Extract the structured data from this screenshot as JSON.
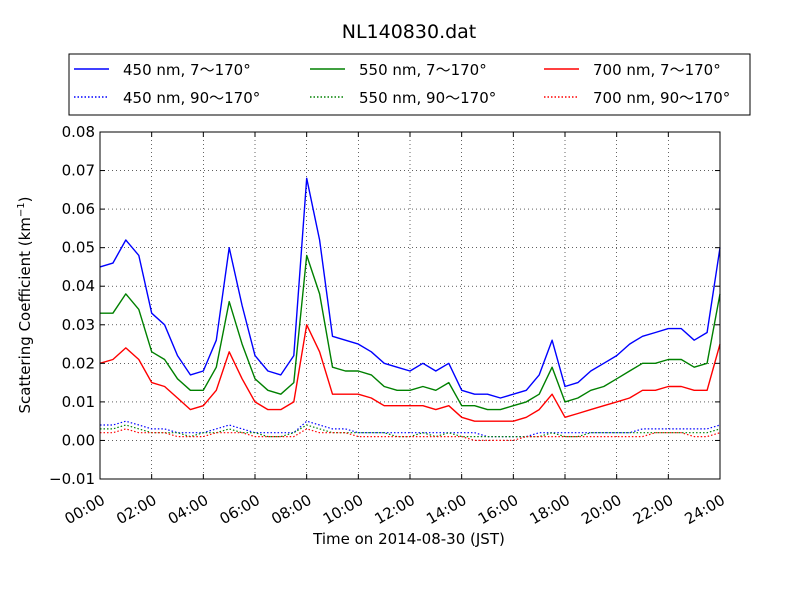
{
  "chart_data": {
    "type": "line",
    "title": "NL140830.dat",
    "xlabel": "Time on 2014-08-30 (JST)",
    "ylabel": "Scattering Coefficient (km⁻¹)",
    "ylabel_main": "Scattering Coefficient (km",
    "ylabel_exp": "−1",
    "ylabel_close": ")",
    "xlim": [
      0,
      24
    ],
    "ylim": [
      -0.01,
      0.08
    ],
    "x_ticks": [
      0,
      2,
      4,
      6,
      8,
      10,
      12,
      14,
      16,
      18,
      20,
      22,
      24
    ],
    "x_tick_labels": [
      "00:00",
      "02:00",
      "04:00",
      "06:00",
      "08:00",
      "10:00",
      "12:00",
      "14:00",
      "16:00",
      "18:00",
      "20:00",
      "22:00",
      "24:00"
    ],
    "y_ticks": [
      -0.01,
      0.0,
      0.01,
      0.02,
      0.03,
      0.04,
      0.05,
      0.06,
      0.07,
      0.08
    ],
    "y_tick_labels": [
      "−0.01",
      "0.00",
      "0.01",
      "0.02",
      "0.03",
      "0.04",
      "0.05",
      "0.06",
      "0.07",
      "0.08"
    ],
    "grid": true,
    "legend_position": "top, above plot",
    "x": [
      0,
      0.5,
      1,
      1.5,
      2,
      2.5,
      3,
      3.5,
      4,
      4.5,
      5,
      5.5,
      6,
      6.5,
      7,
      7.5,
      8,
      8.5,
      9,
      9.5,
      10,
      10.5,
      11,
      11.5,
      12,
      12.5,
      13,
      13.5,
      14,
      14.5,
      15,
      15.5,
      16,
      16.5,
      17,
      17.5,
      18,
      18.5,
      19,
      19.5,
      20,
      20.5,
      21,
      21.5,
      22,
      22.5,
      23,
      23.5,
      24
    ],
    "series": [
      {
        "name": "450 nm, 7～170°",
        "color": "#0000ff",
        "style": "solid",
        "values": [
          0.045,
          0.046,
          0.052,
          0.048,
          0.033,
          0.03,
          0.022,
          0.017,
          0.018,
          0.026,
          0.05,
          0.035,
          0.022,
          0.018,
          0.017,
          0.022,
          0.068,
          0.052,
          0.027,
          0.026,
          0.025,
          0.023,
          0.02,
          0.019,
          0.018,
          0.02,
          0.018,
          0.02,
          0.013,
          0.012,
          0.012,
          0.011,
          0.012,
          0.013,
          0.017,
          0.026,
          0.014,
          0.015,
          0.018,
          0.02,
          0.022,
          0.025,
          0.027,
          0.028,
          0.029,
          0.029,
          0.026,
          0.028,
          0.05
        ]
      },
      {
        "name": "550 nm, 7～170°",
        "color": "#008000",
        "style": "solid",
        "values": [
          0.033,
          0.033,
          0.038,
          0.034,
          0.023,
          0.021,
          0.016,
          0.013,
          0.013,
          0.019,
          0.036,
          0.025,
          0.016,
          0.013,
          0.012,
          0.015,
          0.048,
          0.038,
          0.019,
          0.018,
          0.018,
          0.017,
          0.014,
          0.013,
          0.013,
          0.014,
          0.013,
          0.015,
          0.009,
          0.009,
          0.008,
          0.008,
          0.009,
          0.01,
          0.012,
          0.019,
          0.01,
          0.011,
          0.013,
          0.014,
          0.016,
          0.018,
          0.02,
          0.02,
          0.021,
          0.021,
          0.019,
          0.02,
          0.038
        ]
      },
      {
        "name": "700 nm, 7～170°",
        "color": "#ff0000",
        "style": "solid",
        "values": [
          0.02,
          0.021,
          0.024,
          0.021,
          0.015,
          0.014,
          0.011,
          0.008,
          0.009,
          0.013,
          0.023,
          0.016,
          0.01,
          0.008,
          0.008,
          0.01,
          0.03,
          0.023,
          0.012,
          0.012,
          0.012,
          0.011,
          0.009,
          0.009,
          0.009,
          0.009,
          0.008,
          0.009,
          0.006,
          0.005,
          0.005,
          0.005,
          0.005,
          0.006,
          0.008,
          0.012,
          0.006,
          0.007,
          0.008,
          0.009,
          0.01,
          0.011,
          0.013,
          0.013,
          0.014,
          0.014,
          0.013,
          0.013,
          0.025
        ]
      },
      {
        "name": "450 nm, 90～170°",
        "color": "#0000ff",
        "style": "dotted",
        "values": [
          0.004,
          0.004,
          0.005,
          0.004,
          0.003,
          0.003,
          0.002,
          0.002,
          0.002,
          0.003,
          0.004,
          0.003,
          0.002,
          0.002,
          0.002,
          0.002,
          0.005,
          0.004,
          0.003,
          0.003,
          0.002,
          0.002,
          0.002,
          0.002,
          0.002,
          0.002,
          0.002,
          0.002,
          0.002,
          0.002,
          0.001,
          0.001,
          0.001,
          0.001,
          0.002,
          0.002,
          0.002,
          0.002,
          0.002,
          0.002,
          0.002,
          0.002,
          0.003,
          0.003,
          0.003,
          0.003,
          0.003,
          0.003,
          0.004
        ]
      },
      {
        "name": "550 nm, 90～170°",
        "color": "#008000",
        "style": "dotted",
        "values": [
          0.003,
          0.003,
          0.004,
          0.003,
          0.002,
          0.002,
          0.002,
          0.001,
          0.002,
          0.002,
          0.003,
          0.002,
          0.002,
          0.001,
          0.001,
          0.002,
          0.004,
          0.003,
          0.002,
          0.002,
          0.002,
          0.002,
          0.002,
          0.001,
          0.001,
          0.002,
          0.001,
          0.002,
          0.001,
          0.001,
          0.001,
          0.001,
          0.001,
          0.001,
          0.001,
          0.002,
          0.001,
          0.001,
          0.002,
          0.002,
          0.002,
          0.002,
          0.002,
          0.002,
          0.002,
          0.002,
          0.002,
          0.002,
          0.003
        ]
      },
      {
        "name": "700 nm, 90～170°",
        "color": "#ff0000",
        "style": "dotted",
        "values": [
          0.002,
          0.002,
          0.003,
          0.002,
          0.002,
          0.002,
          0.001,
          0.001,
          0.001,
          0.002,
          0.002,
          0.002,
          0.001,
          0.001,
          0.001,
          0.001,
          0.003,
          0.002,
          0.002,
          0.002,
          0.001,
          0.001,
          0.001,
          0.001,
          0.001,
          0.001,
          0.001,
          0.001,
          0.001,
          0.0,
          0.0,
          0.0,
          0.0,
          0.001,
          0.001,
          0.001,
          0.001,
          0.001,
          0.001,
          0.001,
          0.001,
          0.001,
          0.001,
          0.002,
          0.002,
          0.002,
          0.001,
          0.001,
          0.002
        ]
      }
    ],
    "legend_order": [
      0,
      1,
      2,
      3,
      4,
      5
    ]
  }
}
